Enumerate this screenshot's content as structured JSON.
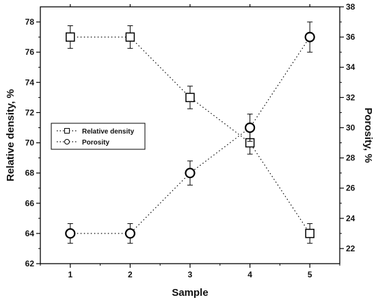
{
  "chart_data": {
    "type": "scatter",
    "title": "",
    "xlabel": "Sample",
    "ylabel_left": "Relative density, %",
    "ylabel_right": "Porosity, %",
    "x": [
      1,
      2,
      3,
      4,
      5
    ],
    "x_ticks": [
      "1",
      "2",
      "3",
      "4",
      "5"
    ],
    "xlim": [
      0.5,
      5.5
    ],
    "ylim_left": [
      62,
      79
    ],
    "ylim_right": [
      21,
      38
    ],
    "yticks_left": [
      "62",
      "64",
      "66",
      "68",
      "70",
      "72",
      "74",
      "76",
      "78"
    ],
    "yticks_right": [
      "22",
      "24",
      "26",
      "28",
      "30",
      "32",
      "34",
      "36",
      "38"
    ],
    "series": [
      {
        "name": "Relative density",
        "axis": "left",
        "marker": "square",
        "line": "dotted",
        "values": [
          77,
          77,
          73,
          70,
          64
        ],
        "error": [
          0.75,
          0.75,
          0.75,
          0.75,
          0.65
        ]
      },
      {
        "name": "Porosity",
        "axis": "right",
        "marker": "circle",
        "line": "dotted",
        "values": [
          23,
          23,
          27,
          30,
          36
        ],
        "error": [
          0.65,
          0.65,
          0.8,
          0.9,
          1.0
        ]
      }
    ],
    "legend_position": "middle-left",
    "grid": false
  }
}
